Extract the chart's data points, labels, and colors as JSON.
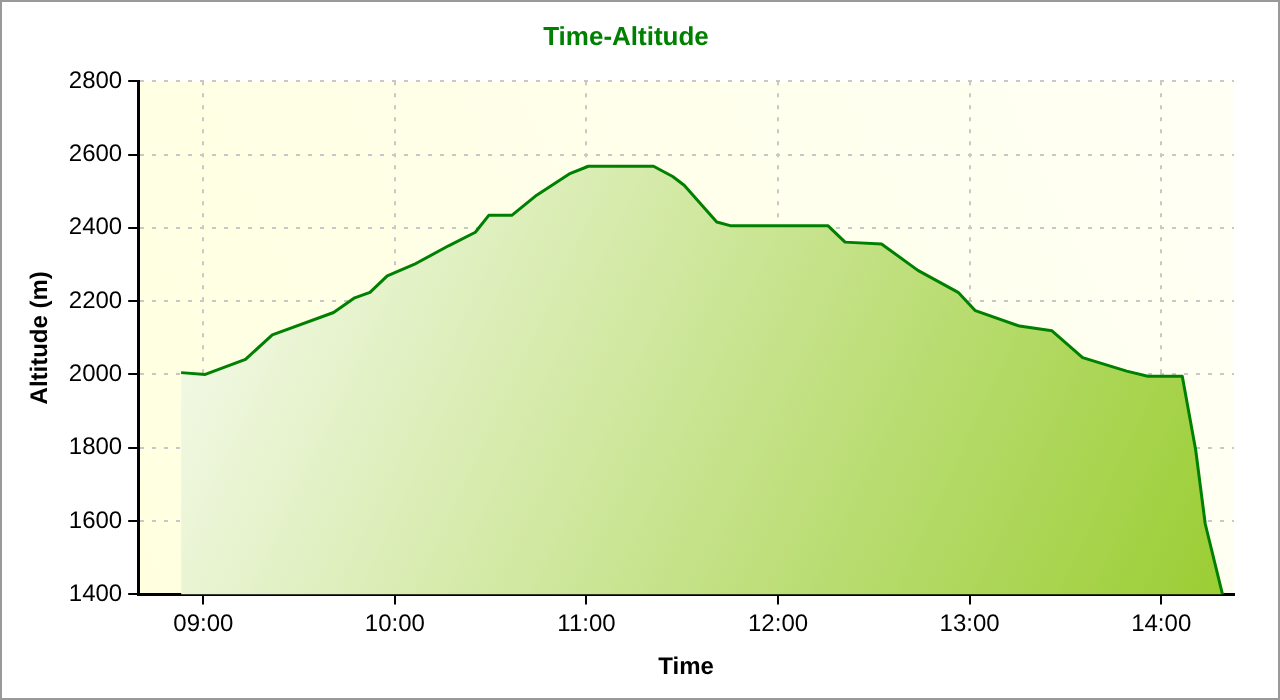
{
  "chart_data": {
    "type": "area",
    "title": "Time-Altitude",
    "xlabel": "Time",
    "ylabel": "Altitude (m)",
    "x": [
      8.884,
      9.01,
      9.22,
      9.36,
      9.68,
      9.79,
      9.87,
      9.96,
      10.1,
      10.28,
      10.42,
      10.49,
      10.61,
      10.74,
      10.91,
      11.01,
      11.35,
      11.45,
      11.51,
      11.68,
      11.75,
      12.26,
      12.35,
      12.54,
      12.73,
      12.94,
      13.03,
      13.26,
      13.43,
      13.59,
      13.82,
      13.93,
      14.11,
      14.18,
      14.23,
      14.32
    ],
    "series": [
      {
        "color": "#008000",
        "values": [
          2005,
          2000,
          2041,
          2108,
          2169,
          2209,
          2224,
          2269,
          2300,
          2351,
          2388,
          2434,
          2434,
          2489,
          2547,
          2568,
          2568,
          2540,
          2516,
          2416,
          2406,
          2406,
          2361,
          2356,
          2284,
          2224,
          2174,
          2132,
          2119,
          2046,
          2009,
          1995,
          1995,
          1794,
          1592,
          1400
        ]
      }
    ],
    "xlim": [
      8.66,
      14.38
    ],
    "xticks": [
      {
        "value": 9,
        "label": "09:00"
      },
      {
        "value": 10,
        "label": "10:00"
      },
      {
        "value": 11,
        "label": "11:00"
      },
      {
        "value": 12,
        "label": "12:00"
      },
      {
        "value": 13,
        "label": "13:00"
      },
      {
        "value": 14,
        "label": "14:00"
      }
    ],
    "ylim": [
      1400,
      2800
    ],
    "yticks": [
      1400,
      1600,
      1800,
      2000,
      2200,
      2400,
      2600,
      2800
    ],
    "grid": true,
    "legend": false,
    "marker": "none",
    "line_style": "solid"
  }
}
